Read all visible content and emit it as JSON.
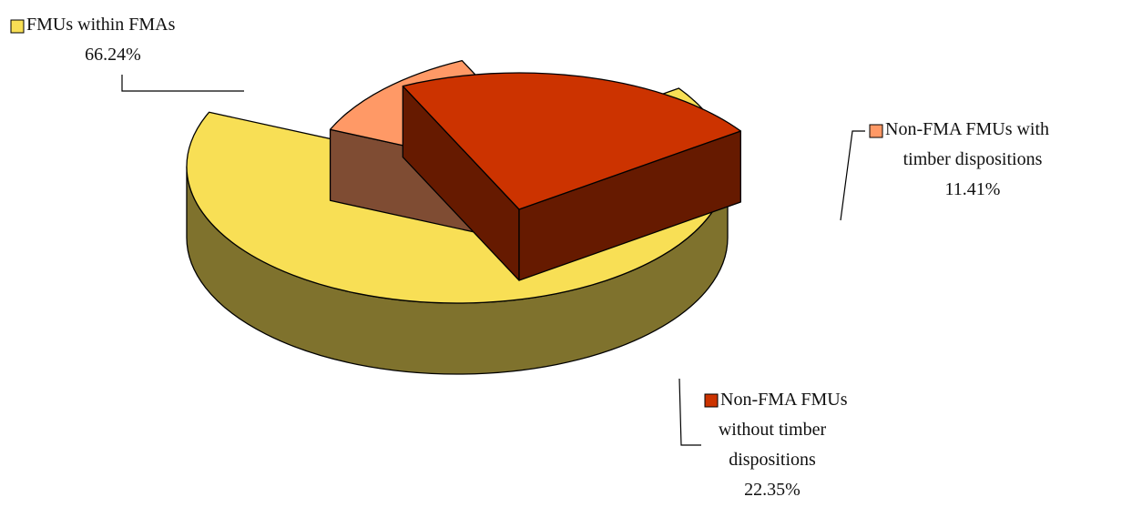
{
  "chart_data": {
    "type": "pie",
    "style": "3d-exploded",
    "title": "",
    "legend": "inline-with-labels",
    "slices": [
      {
        "name": "FMUs within FMAs",
        "value": 66.24,
        "label_lines": [
          "FMUs within FMAs"
        ],
        "percent_label": "66.24%",
        "color": "#f8df55",
        "side_color": "#7f722d"
      },
      {
        "name": "Non-FMA FMUs with timber dispositions",
        "value": 11.41,
        "label_lines": [
          "Non-FMA FMUs with",
          "timber dispositions"
        ],
        "percent_label": "11.41%",
        "color": "#ff9966",
        "side_color": "#7f4c33"
      },
      {
        "name": "Non-FMA FMUs without timber dispositions",
        "value": 22.35,
        "label_lines": [
          "Non-FMA FMUs",
          "without timber",
          "dispositions"
        ],
        "percent_label": "22.35%",
        "color": "#cc3300",
        "side_color": "#661a00"
      }
    ]
  }
}
